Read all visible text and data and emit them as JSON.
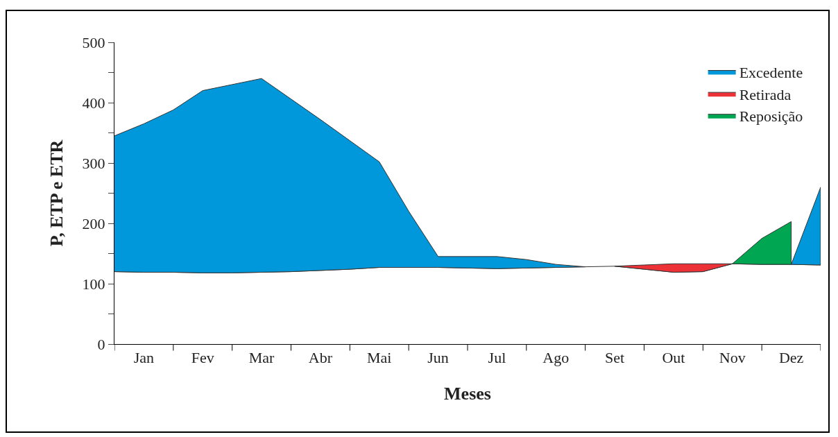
{
  "chart_data": {
    "type": "area",
    "stacked": true,
    "xlabel": "Meses",
    "ylabel": "P, ETP e ETR",
    "ylim": [
      0,
      500
    ],
    "categories": [
      null,
      "Jan",
      null,
      "Fev",
      null,
      "Mar",
      null,
      "Abr",
      null,
      "Mai",
      null,
      "Jun",
      null,
      "Jul",
      null,
      "Ago",
      null,
      "Set",
      null,
      "Out",
      null,
      "Nov",
      null,
      "Dez",
      null
    ],
    "yticks": [
      0,
      {
        "value": 50,
        "label": null
      },
      100,
      {
        "value": 150,
        "label": null
      },
      200,
      {
        "value": 250,
        "label": null
      },
      300,
      {
        "value": 350,
        "label": null
      },
      400,
      {
        "value": 450,
        "label": null
      },
      500
    ],
    "grid": false,
    "legend": "top right",
    "series": [
      {
        "color": "#ffffff",
        "values": [
          120,
          119,
          119,
          118,
          118,
          119,
          120,
          122,
          124,
          127,
          127,
          127,
          126,
          125,
          126,
          127,
          128,
          129,
          124,
          119,
          120,
          133,
          132,
          132,
          131
        ]
      },
      {
        "name": "Excedente",
        "color": "#0098da",
        "values": [
          225,
          246,
          269,
          302,
          312,
          321,
          286,
          250,
          213,
          175,
          93,
          18,
          19,
          20,
          14,
          5,
          0,
          null,
          null,
          null,
          null,
          null,
          null,
          null,
          null
        ]
      },
      {
        "name": "Retirada",
        "color": "#ed3237",
        "values": [
          null,
          null,
          null,
          null,
          null,
          null,
          null,
          null,
          null,
          null,
          null,
          null,
          null,
          null,
          null,
          null,
          null,
          0,
          7,
          14,
          13,
          0,
          null,
          null,
          null
        ]
      },
      {
        "color": "#0098da",
        "values": [
          null,
          null,
          null,
          null,
          null,
          null,
          null,
          null,
          null,
          null,
          null,
          null,
          null,
          null,
          null,
          null,
          null,
          null,
          null,
          null,
          null,
          null,
          null,
          0,
          129
        ]
      },
      {
        "name": "Reposição",
        "color": "#00a651",
        "values": [
          null,
          null,
          null,
          null,
          null,
          null,
          null,
          null,
          null,
          null,
          null,
          null,
          null,
          null,
          null,
          null,
          null,
          null,
          null,
          null,
          null,
          0,
          43,
          71,
          null
        ]
      }
    ]
  }
}
